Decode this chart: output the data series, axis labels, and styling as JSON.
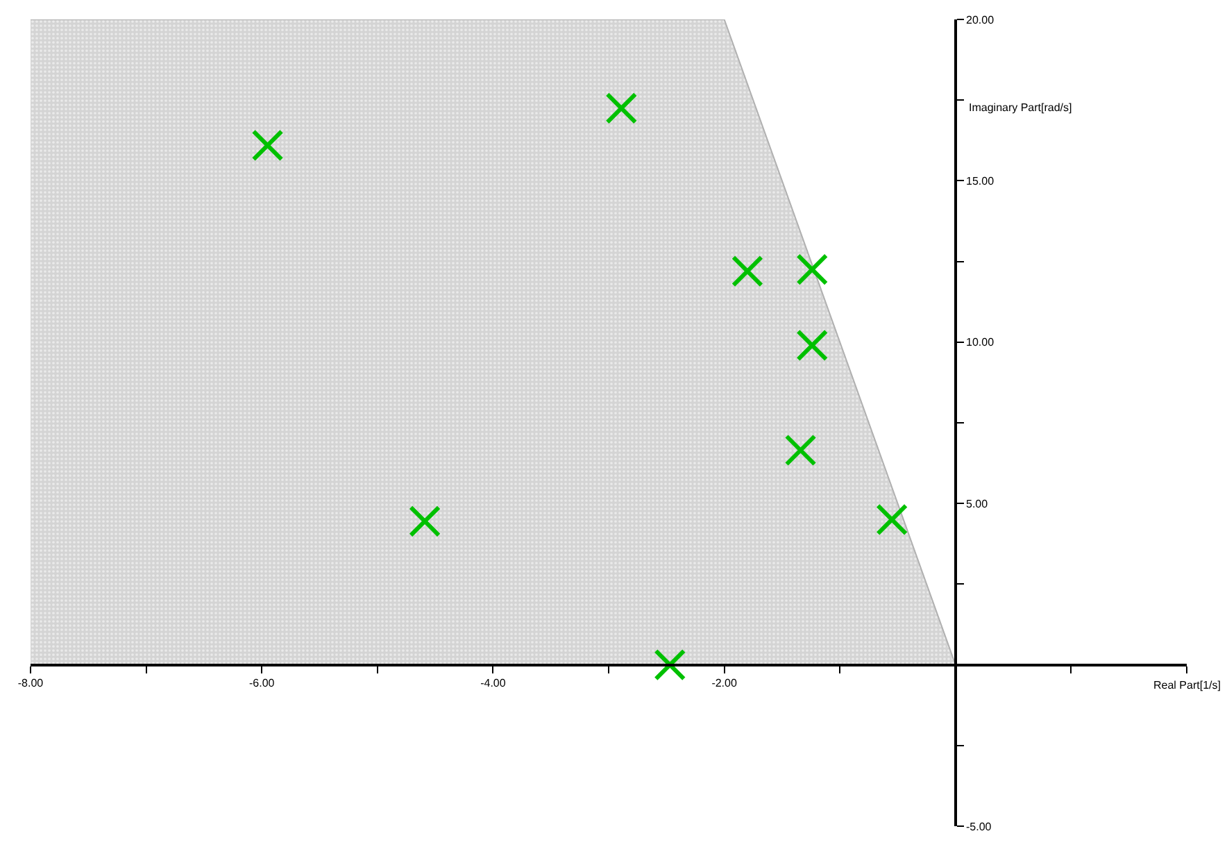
{
  "chart_data": {
    "type": "scatter",
    "xlabel": "Real Part[1/s]",
    "ylabel": "Imaginary Part[rad/s]",
    "series": [
      {
        "type": "area",
        "color": "#d4d4d4",
        "x": [
          -8,
          -2,
          0
        ],
        "values": [
          20,
          20,
          0
        ]
      },
      {
        "color": "#00c000",
        "marker": "cross",
        "x": [
          -5.95,
          -2.89,
          -1.8,
          -1.24,
          -1.24,
          -1.34,
          -0.55,
          -4.59,
          -2.47
        ],
        "values": [
          16.1,
          17.25,
          12.2,
          12.25,
          9.9,
          6.65,
          4.5,
          4.45,
          0
        ]
      }
    ],
    "xlim": [
      -8,
      2
    ],
    "ylim": [
      -5,
      20
    ],
    "xticks": [
      {
        "value": -8,
        "label": "-8.00"
      },
      {
        "value": -7,
        "label": null
      },
      {
        "value": -6,
        "label": "-6.00"
      },
      {
        "value": -5,
        "label": null
      },
      {
        "value": -4,
        "label": "-4.00"
      },
      {
        "value": -3,
        "label": null
      },
      {
        "value": -2,
        "label": "-2.00"
      },
      {
        "value": -1,
        "label": null
      },
      {
        "value": 1,
        "label": null
      },
      {
        "value": 2,
        "label": null
      }
    ],
    "yticks": [
      {
        "value": -5,
        "label": "-5.00"
      },
      {
        "value": -2.5,
        "label": null
      },
      {
        "value": 2.5,
        "label": null
      },
      {
        "value": 5,
        "label": "5.00"
      },
      {
        "value": 7.5,
        "label": null
      },
      {
        "value": 10,
        "label": "10.00"
      },
      {
        "value": 12.5,
        "label": null
      },
      {
        "value": 15,
        "label": "15.00"
      },
      {
        "value": 17.5,
        "label": null
      },
      {
        "value": 20,
        "label": "20.00"
      }
    ],
    "legend": false
  }
}
